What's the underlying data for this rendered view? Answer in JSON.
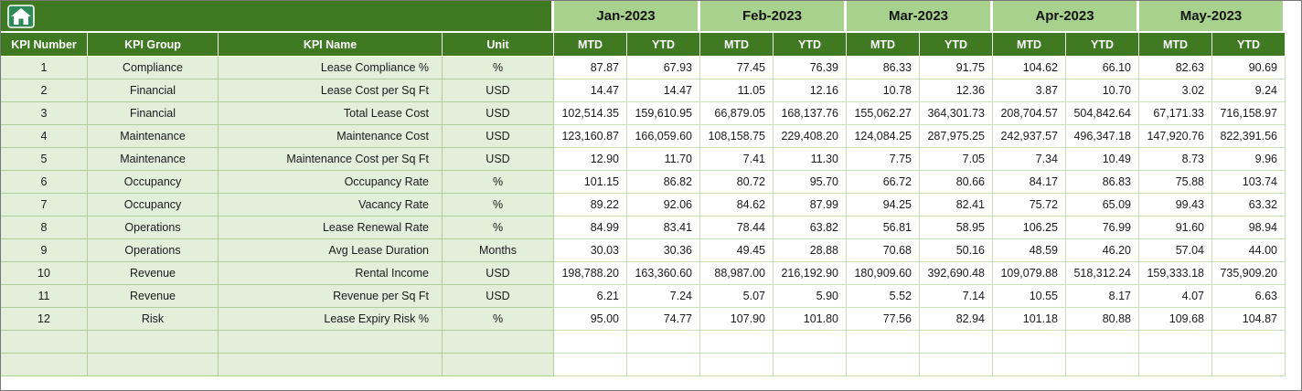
{
  "sheet": {
    "left_headers": [
      "KPI Number",
      "KPI Group",
      "KPI Name",
      "Unit"
    ],
    "months": [
      "Jan-2023",
      "Feb-2023",
      "Mar-2023",
      "Apr-2023",
      "May-2023"
    ],
    "period_headers": [
      "MTD",
      "YTD"
    ],
    "rows": [
      {
        "kpi_number": "1",
        "kpi_group": "Compliance",
        "kpi_name": "Lease Compliance %",
        "unit": "%",
        "values": [
          "87.87",
          "67.93",
          "77.45",
          "76.39",
          "86.33",
          "91.75",
          "104.62",
          "66.10",
          "82.63",
          "90.69"
        ]
      },
      {
        "kpi_number": "2",
        "kpi_group": "Financial",
        "kpi_name": "Lease Cost per Sq Ft",
        "unit": "USD",
        "values": [
          "14.47",
          "14.47",
          "11.05",
          "12.16",
          "10.78",
          "12.36",
          "3.87",
          "10.70",
          "3.02",
          "9.24"
        ]
      },
      {
        "kpi_number": "3",
        "kpi_group": "Financial",
        "kpi_name": "Total Lease Cost",
        "unit": "USD",
        "values": [
          "102,514.35",
          "159,610.95",
          "66,879.05",
          "168,137.76",
          "155,062.27",
          "364,301.73",
          "208,704.57",
          "504,842.64",
          "67,171.33",
          "716,158.97"
        ]
      },
      {
        "kpi_number": "4",
        "kpi_group": "Maintenance",
        "kpi_name": "Maintenance Cost",
        "unit": "USD",
        "values": [
          "123,160.87",
          "166,059.60",
          "108,158.75",
          "229,408.20",
          "124,084.25",
          "287,975.25",
          "242,937.57",
          "496,347.18",
          "147,920.76",
          "822,391.56"
        ]
      },
      {
        "kpi_number": "5",
        "kpi_group": "Maintenance",
        "kpi_name": "Maintenance Cost per Sq Ft",
        "unit": "USD",
        "values": [
          "12.90",
          "11.70",
          "7.41",
          "11.30",
          "7.75",
          "7.05",
          "7.34",
          "10.49",
          "8.73",
          "9.96"
        ]
      },
      {
        "kpi_number": "6",
        "kpi_group": "Occupancy",
        "kpi_name": "Occupancy Rate",
        "unit": "%",
        "values": [
          "101.15",
          "86.82",
          "80.72",
          "95.70",
          "66.72",
          "80.66",
          "84.17",
          "86.83",
          "75.88",
          "103.74"
        ]
      },
      {
        "kpi_number": "7",
        "kpi_group": "Occupancy",
        "kpi_name": "Vacancy Rate",
        "unit": "%",
        "values": [
          "89.22",
          "92.06",
          "84.62",
          "87.99",
          "94.25",
          "82.41",
          "75.72",
          "65.09",
          "99.43",
          "63.32"
        ]
      },
      {
        "kpi_number": "8",
        "kpi_group": "Operations",
        "kpi_name": "Lease Renewal Rate",
        "unit": "%",
        "values": [
          "84.99",
          "83.41",
          "78.44",
          "63.82",
          "56.81",
          "58.95",
          "106.25",
          "76.99",
          "91.60",
          "98.94"
        ]
      },
      {
        "kpi_number": "9",
        "kpi_group": "Operations",
        "kpi_name": "Avg Lease Duration",
        "unit": "Months",
        "values": [
          "30.03",
          "30.36",
          "49.45",
          "28.88",
          "70.68",
          "50.16",
          "48.59",
          "46.20",
          "57.04",
          "44.00"
        ]
      },
      {
        "kpi_number": "10",
        "kpi_group": "Revenue",
        "kpi_name": "Rental Income",
        "unit": "USD",
        "values": [
          "198,788.20",
          "163,360.60",
          "88,987.00",
          "216,192.90",
          "180,909.60",
          "392,690.48",
          "109,079.88",
          "518,312.24",
          "159,333.18",
          "735,909.20"
        ]
      },
      {
        "kpi_number": "11",
        "kpi_group": "Revenue",
        "kpi_name": "Revenue per Sq Ft",
        "unit": "USD",
        "values": [
          "6.21",
          "7.24",
          "5.07",
          "5.90",
          "5.52",
          "7.14",
          "10.55",
          "8.17",
          "4.07",
          "6.63"
        ]
      },
      {
        "kpi_number": "12",
        "kpi_group": "Risk",
        "kpi_name": "Lease Expiry Risk %",
        "unit": "%",
        "values": [
          "95.00",
          "74.77",
          "107.90",
          "101.80",
          "77.56",
          "82.94",
          "101.18",
          "80.88",
          "109.68",
          "104.87"
        ]
      }
    ],
    "empty_row_count": 2,
    "colors": {
      "header_dark_green": "#3F7A23",
      "month_light_green": "#A9D18E",
      "row_tint_green": "#E2EFDA",
      "gridline_green": "#C9E0B6"
    }
  }
}
